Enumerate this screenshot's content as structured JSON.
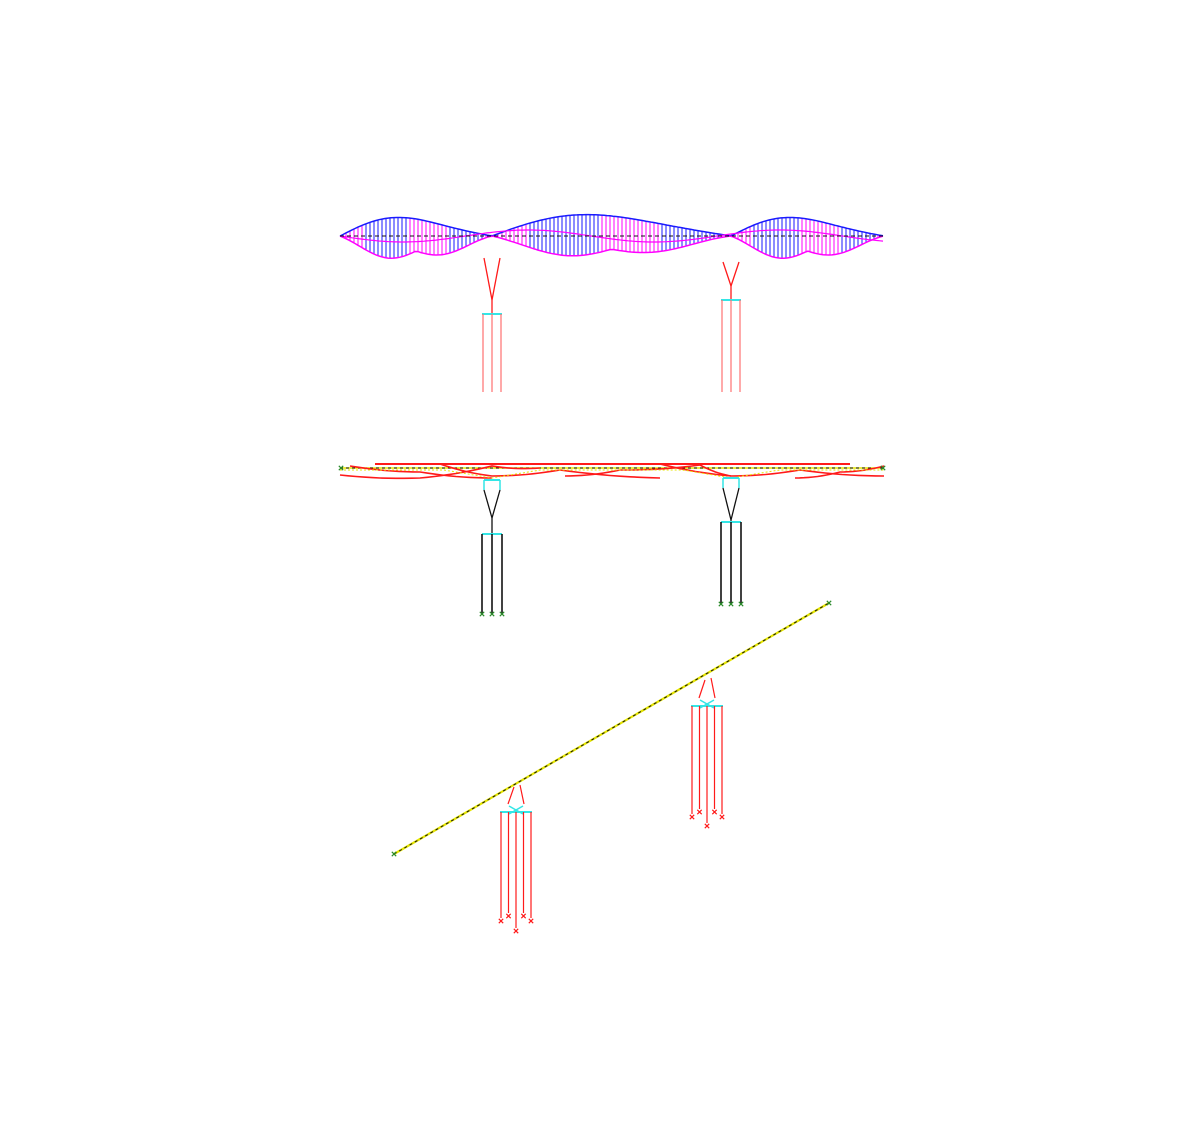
{
  "colors": {
    "background": "#ffffff",
    "diagram_magenta": "#ff00ff",
    "diagram_blue": "#1a1aff",
    "element_red": "#ff1a1a",
    "pile_pink": "#ff7070",
    "pier_cyan": "#33e6e6",
    "deck_black": "#111111",
    "deck_yellow": "#e6e600",
    "support_green": "#2a8a2a"
  },
  "views": [
    {
      "id": "moment-diagram",
      "kind": "force-diagram-elevation"
    },
    {
      "id": "tendon-elevation",
      "kind": "prestress-tendon-elevation"
    },
    {
      "id": "plan-view",
      "kind": "skewed-plan-view"
    }
  ],
  "piers": [
    {
      "id": "pier-1"
    },
    {
      "id": "pier-2"
    }
  ]
}
